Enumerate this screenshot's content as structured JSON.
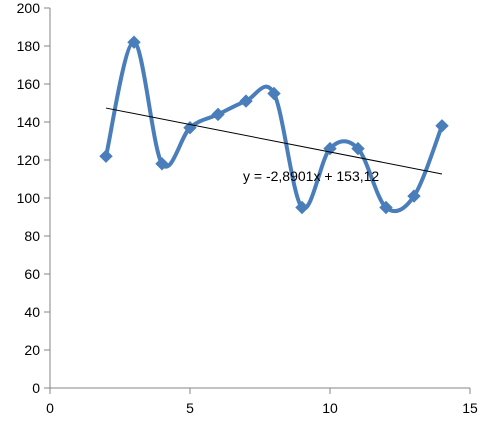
{
  "chart_data": {
    "type": "scatter",
    "title": "",
    "xlabel": "",
    "ylabel": "",
    "xlim": [
      0,
      15
    ],
    "ylim": [
      0,
      200
    ],
    "x_ticks": [
      0,
      5,
      10,
      15
    ],
    "x_tick_labels": [
      "0",
      "5",
      "10",
      "15"
    ],
    "y_ticks": [
      0,
      20,
      40,
      60,
      80,
      100,
      120,
      140,
      160,
      180,
      200
    ],
    "y_tick_labels": [
      "0",
      "20",
      "40",
      "60",
      "80",
      "100",
      "120",
      "140",
      "160",
      "180",
      "200"
    ],
    "grid": false,
    "smooth": true,
    "series": [
      {
        "x": [
          2,
          3,
          4,
          5,
          6,
          7,
          8,
          9,
          10,
          11,
          12,
          13,
          14
        ],
        "y": [
          122,
          182,
          118,
          137,
          144,
          151,
          155,
          95,
          126,
          126,
          95,
          101,
          138
        ],
        "color": "#4a7ebb",
        "marker": "diamond"
      }
    ],
    "trendline": {
      "type": "linear",
      "slope": -2.8901,
      "intercept": 153.12,
      "x_range": [
        2,
        14
      ],
      "color": "#000000",
      "equation_label": "y = -2,8901x + 153,12"
    }
  }
}
